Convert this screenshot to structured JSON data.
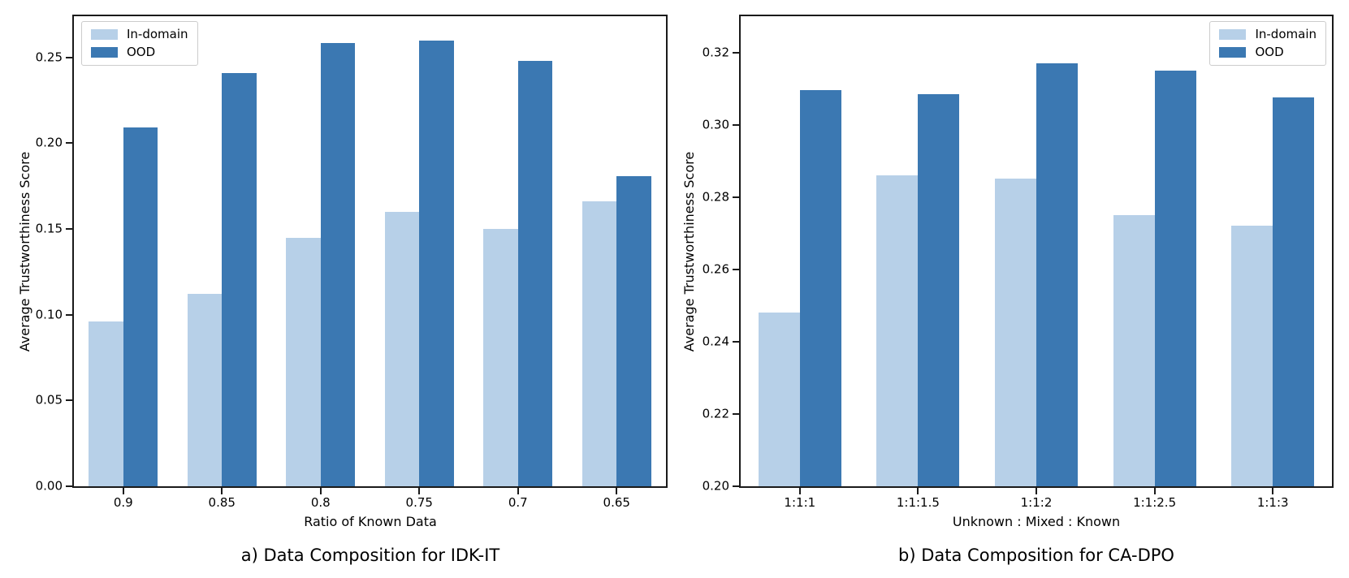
{
  "figure": {
    "background": "#ffffff",
    "spine_color": "#1a1a1a",
    "series_colors": [
      "#b7d0e8",
      "#3b78b2"
    ],
    "legend": {
      "items": [
        {
          "label": "In-domain",
          "color": "#b7d0e8"
        },
        {
          "label": "OOD",
          "color": "#3b78b2"
        }
      ]
    }
  },
  "chart_data": [
    {
      "type": "bar",
      "title": "a) Data Composition for IDK-IT",
      "xlabel": "Ratio of Known Data",
      "ylabel": "Average Trustworthiness Score",
      "categories": [
        "0.9",
        "0.85",
        "0.8",
        "0.75",
        "0.7",
        "0.65"
      ],
      "series": [
        {
          "name": "In-domain",
          "values": [
            0.096,
            0.112,
            0.145,
            0.16,
            0.15,
            0.166
          ]
        },
        {
          "name": "OOD",
          "values": [
            0.209,
            0.241,
            0.2585,
            0.26,
            0.248,
            0.181
          ]
        }
      ],
      "ylim": [
        0.0,
        0.274
      ],
      "yticks": [
        0.0,
        0.05,
        0.1,
        0.15,
        0.2,
        0.25
      ],
      "ytick_labels": [
        "0.00",
        "0.05",
        "0.10",
        "0.15",
        "0.20",
        "0.25"
      ],
      "legend_position": "upper-left",
      "grid": false
    },
    {
      "type": "bar",
      "title": "b) Data Composition for CA-DPO",
      "xlabel": "Unknown : Mixed : Known",
      "ylabel": "Average Trustworthiness Score",
      "categories": [
        "1:1:1",
        "1:1:1.5",
        "1:1:2",
        "1:1:2.5",
        "1:1:3"
      ],
      "series": [
        {
          "name": "In-domain",
          "values": [
            0.248,
            0.286,
            0.285,
            0.275,
            0.272
          ]
        },
        {
          "name": "OOD",
          "values": [
            0.3095,
            0.3085,
            0.317,
            0.315,
            0.3075
          ]
        }
      ],
      "ylim": [
        0.2,
        0.33
      ],
      "yticks": [
        0.2,
        0.22,
        0.24,
        0.26,
        0.28,
        0.3,
        0.32
      ],
      "ytick_labels": [
        "0.20",
        "0.22",
        "0.24",
        "0.26",
        "0.28",
        "0.30",
        "0.32"
      ],
      "legend_position": "upper-right",
      "grid": false
    }
  ]
}
